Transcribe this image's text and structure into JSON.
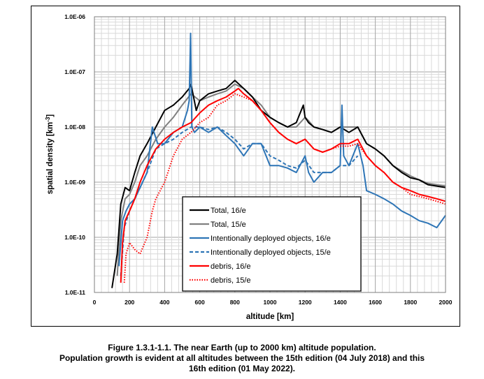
{
  "chart_data": {
    "type": "line",
    "xlabel": "altitude [km]",
    "ylabel_main": "spatial density [km",
    "ylabel_sup": "-3",
    "ylabel_end": "]",
    "xlim": [
      0,
      2000
    ],
    "ylim": [
      1e-11,
      1e-06
    ],
    "y_scale": "log",
    "grid": true,
    "legend_position": "center-right",
    "x_ticks": [
      "0",
      "200",
      "400",
      "600",
      "800",
      "1000",
      "1200",
      "1400",
      "1600",
      "1800",
      "2000"
    ],
    "y_ticks": [
      "1.0E-11",
      "1.0E-10",
      "1.0E-09",
      "1.0E-08",
      "1.0E-07",
      "1.0E-06"
    ],
    "series": [
      {
        "name": "Total, 16/e",
        "color": "#000000",
        "dash": "solid",
        "x": [
          100,
          130,
          150,
          175,
          200,
          230,
          260,
          300,
          350,
          400,
          450,
          500,
          540,
          550,
          580,
          600,
          650,
          700,
          750,
          800,
          850,
          900,
          950,
          1000,
          1050,
          1100,
          1150,
          1190,
          1200,
          1220,
          1250,
          1300,
          1350,
          1400,
          1450,
          1500,
          1550,
          1600,
          1650,
          1700,
          1750,
          1800,
          1850,
          1900,
          1950,
          2000
        ],
        "y": [
          1.2e-11,
          5e-11,
          4e-10,
          8e-10,
          7e-10,
          1.5e-09,
          3e-09,
          5e-09,
          1e-08,
          2e-08,
          2.5e-08,
          3.5e-08,
          5e-08,
          6e-08,
          2e-08,
          3e-08,
          4e-08,
          4.5e-08,
          5e-08,
          7e-08,
          5e-08,
          3.5e-08,
          2e-08,
          1.5e-08,
          1.2e-08,
          1e-08,
          1.2e-08,
          2.5e-08,
          1.5e-08,
          1.2e-08,
          1e-08,
          9e-09,
          8e-09,
          1e-08,
          8e-09,
          1e-08,
          5e-09,
          4e-09,
          3e-09,
          2e-09,
          1.5e-09,
          1.2e-09,
          1.1e-09,
          9e-10,
          8.5e-10,
          8e-10
        ]
      },
      {
        "name": "Total, 15/e",
        "color": "#808080",
        "dash": "solid",
        "x": [
          130,
          150,
          175,
          200,
          230,
          260,
          300,
          350,
          400,
          450,
          500,
          550,
          600,
          650,
          700,
          750,
          800,
          850,
          900,
          950,
          1000,
          1050,
          1100,
          1150,
          1200,
          1220,
          1250,
          1300,
          1350,
          1400,
          1450,
          1500,
          1550,
          1600,
          1650,
          1700,
          1750,
          1800,
          1850,
          1900,
          1950,
          2000
        ],
        "y": [
          2e-11,
          2e-10,
          5e-10,
          6e-10,
          1e-09,
          2e-09,
          3e-09,
          6e-09,
          1e-08,
          1.5e-08,
          2.5e-08,
          4e-08,
          3e-08,
          3.5e-08,
          4e-08,
          4.5e-08,
          6e-08,
          5e-08,
          3.5e-08,
          2.5e-08,
          1.5e-08,
          1.2e-08,
          1e-08,
          1e-08,
          1.5e-08,
          1.3e-08,
          1e-08,
          9e-09,
          8e-09,
          1e-08,
          1e-08,
          1e-08,
          5e-09,
          4e-09,
          3e-09,
          2e-09,
          1.6e-09,
          1.3e-09,
          1.1e-09,
          9.5e-10,
          9e-10,
          8.5e-10
        ]
      },
      {
        "name": "Intentionally deployed objects, 16/e",
        "color": "#2e75b6",
        "dash": "solid",
        "x": [
          140,
          160,
          180,
          200,
          230,
          260,
          300,
          330,
          360,
          400,
          450,
          500,
          530,
          540,
          548,
          555,
          570,
          600,
          650,
          700,
          750,
          800,
          850,
          900,
          950,
          1000,
          1050,
          1100,
          1150,
          1200,
          1220,
          1250,
          1300,
          1350,
          1400,
          1410,
          1420,
          1450,
          1500,
          1530,
          1550,
          1600,
          1650,
          1700,
          1750,
          1800,
          1850,
          1900,
          1950,
          2000
        ],
        "y": [
          3e-11,
          2e-10,
          3e-10,
          4e-10,
          5e-10,
          8e-10,
          1.5e-09,
          1e-08,
          5e-09,
          5e-09,
          8e-09,
          1e-08,
          2e-08,
          3e-08,
          5e-07,
          1e-08,
          8e-09,
          1e-08,
          8e-09,
          1e-08,
          7e-09,
          5e-09,
          3e-09,
          5e-09,
          5e-09,
          2e-09,
          2e-09,
          1.8e-09,
          1.5e-09,
          3e-09,
          1.5e-09,
          1e-09,
          1.5e-09,
          1.5e-09,
          2e-09,
          2.5e-08,
          3e-09,
          2e-09,
          5e-09,
          2e-09,
          7e-10,
          6e-10,
          5e-10,
          4e-10,
          3e-10,
          2.5e-10,
          2e-10,
          1.8e-10,
          1.5e-10,
          2.5e-10
        ]
      },
      {
        "name": "Intentionally deployed objects, 15/e",
        "color": "#2e75b6",
        "dash": "dash",
        "x": [
          150,
          170,
          200,
          230,
          260,
          300,
          350,
          400,
          450,
          500,
          550,
          600,
          650,
          700,
          750,
          800,
          850,
          900,
          950,
          1000,
          1050,
          1100,
          1150,
          1200,
          1250,
          1300,
          1350,
          1400,
          1450,
          1500
        ],
        "y": [
          2e-11,
          1.5e-10,
          3e-10,
          5e-10,
          8e-10,
          1.5e-09,
          4e-09,
          5e-09,
          6e-09,
          8e-09,
          1e-08,
          1e-08,
          9e-09,
          1e-08,
          8e-09,
          6e-09,
          4e-09,
          5e-09,
          5e-09,
          3e-09,
          2.5e-09,
          2e-09,
          1.8e-09,
          2.5e-09,
          1.5e-09,
          1.5e-09,
          1.5e-09,
          2e-09,
          2e-09,
          3e-09
        ]
      },
      {
        "name": "debris, 16/e",
        "color": "#ff0000",
        "dash": "solid",
        "x": [
          150,
          160,
          175,
          200,
          230,
          260,
          300,
          350,
          400,
          450,
          500,
          550,
          600,
          650,
          700,
          750,
          800,
          820,
          850,
          900,
          950,
          1000,
          1050,
          1100,
          1150,
          1200,
          1250,
          1300,
          1350,
          1400,
          1450,
          1500,
          1550,
          1600,
          1650,
          1700,
          1750,
          1800,
          1850,
          1900,
          1950,
          2000
        ],
        "y": [
          1.5e-11,
          8e-11,
          2e-10,
          3e-10,
          5e-10,
          1e-09,
          2e-09,
          4e-09,
          6e-09,
          8e-09,
          1e-08,
          1.2e-08,
          1.8e-08,
          2.5e-08,
          3e-08,
          3.5e-08,
          4.5e-08,
          5e-08,
          4e-08,
          3e-08,
          2e-08,
          1.2e-08,
          8e-09,
          6e-09,
          5e-09,
          6e-09,
          4e-09,
          3.5e-09,
          4e-09,
          5e-09,
          5e-09,
          6e-09,
          3e-09,
          2e-09,
          1.5e-09,
          1e-09,
          8e-10,
          7e-10,
          6e-10,
          5.5e-10,
          5e-10,
          4.5e-10
        ]
      },
      {
        "name": "debris, 15/e",
        "color": "#ff0000",
        "dash": "dot",
        "x": [
          170,
          180,
          200,
          230,
          260,
          300,
          330,
          350,
          400,
          450,
          500,
          550,
          600,
          650,
          700,
          750,
          800,
          850,
          900,
          950,
          1000,
          1050,
          1100,
          1150,
          1200,
          1250,
          1300,
          1350,
          1400,
          1450,
          1500,
          1550,
          1600,
          1650,
          1700,
          1750,
          1800,
          1850,
          1900,
          1950,
          2000
        ],
        "y": [
          1.5e-11,
          5e-11,
          8e-11,
          6e-11,
          5e-11,
          1e-10,
          3e-10,
          5e-10,
          1e-09,
          3e-09,
          6e-09,
          8e-09,
          1.2e-08,
          1.5e-08,
          2.5e-08,
          3e-08,
          4e-08,
          3.5e-08,
          3e-08,
          2e-08,
          1.2e-08,
          8e-09,
          6e-09,
          5e-09,
          6e-09,
          4e-09,
          3.5e-09,
          4e-09,
          4.5e-09,
          4.5e-09,
          5e-09,
          3e-09,
          2e-09,
          1.5e-09,
          1e-09,
          8e-10,
          6e-10,
          5.5e-10,
          5e-10,
          4.5e-10,
          4e-10
        ]
      }
    ]
  },
  "caption": {
    "line1": "Figure 1.3.1-1.1.  The near Earth (up to 2000 km) altitude population.",
    "line2": "Population growth is evident at all altitudes between the 15th edition (04 July 2018) and this",
    "line3": "16th edition (01 May 2022)."
  }
}
